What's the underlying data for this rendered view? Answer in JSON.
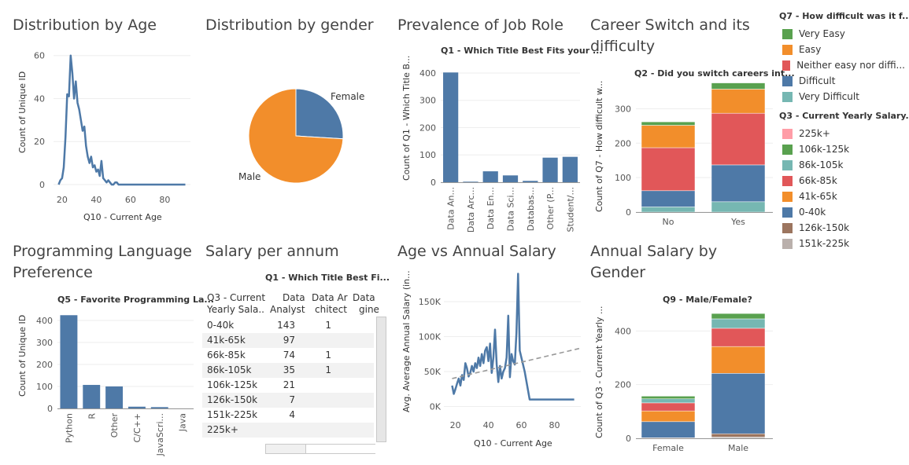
{
  "titles": {
    "age": "Distribution by Age",
    "gender": "Distribution by gender",
    "jobrole": "Prevalence of Job Role",
    "career": "Career Switch and its difficulty",
    "proglang": "Programming Language Preference",
    "salary": "Salary per annum",
    "agesal": "Age vs Annual Salary",
    "salgender": "Annual Salary by Gender"
  },
  "subtitles": {
    "jobrole": "Q1 - Which Title Best Fits your ...",
    "career": "Q2 - Did you switch careers int...",
    "proglang": "Q5 - Favorite Programming La...",
    "salary": "Q1 - Which Title Best Fi...",
    "salgender": "Q9 - Male/Female?"
  },
  "colors": {
    "blue": "#4e79a7",
    "orange": "#f28e2b",
    "red": "#e15759",
    "teal": "#76b7b2",
    "green": "#59a14f",
    "pink": "#ff9da7",
    "lightgreen": "#8cd17d",
    "lightteal": "#86bcb6",
    "brown": "#9c755f",
    "gray": "#bab0ac"
  },
  "legend_q7": {
    "title": "Q7 - How difficult was it f...",
    "items": [
      {
        "label": "Very Easy",
        "color": "#59a14f"
      },
      {
        "label": "Easy",
        "color": "#f28e2b"
      },
      {
        "label": "Neither easy nor diffi...",
        "color": "#e15759"
      },
      {
        "label": "Difficult",
        "color": "#4e79a7"
      },
      {
        "label": "Very Difficult",
        "color": "#76b7b2"
      }
    ]
  },
  "legend_q3": {
    "title": "Q3 - Current Yearly Salary...",
    "items": [
      {
        "label": "225k+",
        "color": "#ff9da7"
      },
      {
        "label": "106k-125k",
        "color": "#59a14f"
      },
      {
        "label": "86k-105k",
        "color": "#76b7b2"
      },
      {
        "label": "66k-85k",
        "color": "#e15759"
      },
      {
        "label": "41k-65k",
        "color": "#f28e2b"
      },
      {
        "label": "0-40k",
        "color": "#4e79a7"
      },
      {
        "label": "126k-150k",
        "color": "#9c755f"
      },
      {
        "label": "151k-225k",
        "color": "#bab0ac"
      }
    ]
  },
  "chart_data": [
    {
      "id": "age_distribution",
      "type": "line",
      "title": "Distribution by Age",
      "xlabel": "Q10 - Current Age",
      "ylabel": "Count of Unique ID",
      "xlim": [
        15,
        95
      ],
      "ylim": [
        0,
        65
      ],
      "xticks": [
        20,
        40,
        60,
        80
      ],
      "yticks": [
        0,
        20,
        40,
        60
      ],
      "x": [
        18,
        19,
        20,
        21,
        22,
        23,
        24,
        25,
        26,
        27,
        28,
        29,
        30,
        31,
        32,
        33,
        34,
        35,
        36,
        37,
        38,
        39,
        40,
        41,
        42,
        43,
        44,
        45,
        46,
        47,
        48,
        49,
        50,
        51,
        52,
        53,
        55,
        57,
        60,
        65,
        70,
        80,
        92
      ],
      "y": [
        0,
        2,
        3,
        8,
        22,
        42,
        41,
        60,
        52,
        40,
        48,
        38,
        35,
        30,
        25,
        27,
        18,
        13,
        10,
        13,
        8,
        9,
        6,
        7,
        4,
        11,
        3,
        2,
        1,
        2,
        1,
        0,
        0,
        1,
        1,
        0,
        0,
        0,
        0,
        0,
        0,
        0,
        0
      ]
    },
    {
      "id": "gender_distribution",
      "type": "pie",
      "title": "Distribution by gender",
      "labels": [
        "Female",
        "Male"
      ],
      "values": [
        26,
        74
      ],
      "colors": [
        "#4e79a7",
        "#f28e2b"
      ]
    },
    {
      "id": "job_role",
      "type": "bar",
      "title": "Prevalence of Job Role",
      "subtitle": "Q1 - Which Title Best Fits your ...",
      "ylabel": "Count of Q1 - Which Title B...",
      "categories": [
        "Data An...",
        "Data Arc...",
        "Data En...",
        "Data Sci...",
        "Databas...",
        "Other (P...",
        "Student/..."
      ],
      "values": [
        402,
        2,
        40,
        25,
        5,
        90,
        93
      ],
      "ylim": [
        0,
        420
      ],
      "yticks": [
        0,
        100,
        200,
        300,
        400
      ]
    },
    {
      "id": "career_switch",
      "type": "bar",
      "title": "Career Switch and its difficulty",
      "subtitle": "Q2 - Did you switch careers int...",
      "ylabel": "Count of Q7 - How difficult w...",
      "categories": [
        "No",
        "Yes"
      ],
      "series": [
        {
          "name": "Very Difficult",
          "values": [
            15,
            30
          ]
        },
        {
          "name": "Difficult",
          "values": [
            47,
            107
          ]
        },
        {
          "name": "Neither easy nor diffi...",
          "values": [
            125,
            150
          ]
        },
        {
          "name": "Easy",
          "values": [
            65,
            70
          ]
        },
        {
          "name": "Very Easy",
          "values": [
            10,
            18
          ]
        }
      ],
      "ylim": [
        0,
        390
      ],
      "yticks": [
        0,
        100,
        200,
        300
      ]
    },
    {
      "id": "prog_language",
      "type": "bar",
      "title": "Programming Language Preference",
      "subtitle": "Q5 - Favorite Programming La...",
      "ylabel": "Count of Unique ID",
      "categories": [
        "Python",
        "R",
        "Other",
        "C/C++",
        "JavaScri...",
        "Java"
      ],
      "values": [
        424,
        107,
        100,
        8,
        6,
        0
      ],
      "ylim": [
        0,
        450
      ],
      "yticks": [
        0,
        100,
        200,
        300,
        400
      ]
    },
    {
      "id": "salary_table",
      "type": "table",
      "title": "Salary per annum",
      "subtitle": "Q1 - Which Title Best Fi...",
      "row_header": [
        "Q3 - Current",
        "Yearly Sala.."
      ],
      "columns": [
        [
          "Data",
          "Analyst"
        ],
        [
          "Data Ar",
          "chitect"
        ],
        [
          "Data",
          "gine"
        ]
      ],
      "rows": [
        {
          "label": "0-40k",
          "cells": [
            "143",
            "1",
            ""
          ]
        },
        {
          "label": "41k-65k",
          "cells": [
            "97",
            "",
            ""
          ]
        },
        {
          "label": "66k-85k",
          "cells": [
            "74",
            "1",
            ""
          ]
        },
        {
          "label": "86k-105k",
          "cells": [
            "35",
            "1",
            ""
          ]
        },
        {
          "label": "106k-125k",
          "cells": [
            "21",
            "",
            ""
          ]
        },
        {
          "label": "126k-150k",
          "cells": [
            "7",
            "",
            ""
          ]
        },
        {
          "label": "151k-225k",
          "cells": [
            "4",
            "",
            ""
          ]
        },
        {
          "label": "225k+",
          "cells": [
            "",
            "",
            ""
          ]
        }
      ]
    },
    {
      "id": "age_vs_salary",
      "type": "line",
      "title": "Age vs Annual Salary",
      "xlabel": "Q10 - Current Age",
      "ylabel": "Avg. Average Annual Salary (in...",
      "xlim": [
        13,
        96
      ],
      "ylim": [
        -5000,
        195000
      ],
      "xticks": [
        20,
        40,
        60,
        80
      ],
      "yticks": [
        0,
        50000,
        100000,
        150000
      ],
      "ytick_labels": [
        "0K",
        "50K",
        "100K",
        "150K"
      ],
      "x": [
        18,
        19,
        20,
        21,
        22,
        23,
        24,
        25,
        26,
        27,
        28,
        29,
        30,
        31,
        32,
        33,
        34,
        35,
        36,
        37,
        38,
        39,
        40,
        41,
        42,
        43,
        44,
        45,
        46,
        47,
        48,
        49,
        50,
        51,
        52,
        53,
        54,
        55,
        56,
        57,
        58,
        59,
        60,
        62,
        65,
        68,
        70,
        80,
        92
      ],
      "y": [
        30000,
        18000,
        25000,
        33000,
        40000,
        30000,
        45000,
        38000,
        62000,
        55000,
        43000,
        48000,
        58000,
        50000,
        62000,
        55000,
        70000,
        58000,
        75000,
        62000,
        80000,
        85000,
        65000,
        90000,
        48000,
        70000,
        110000,
        60000,
        35000,
        58000,
        40000,
        50000,
        55000,
        70000,
        130000,
        42000,
        75000,
        65000,
        60000,
        105000,
        190000,
        80000,
        70000,
        50000,
        10000,
        10000,
        10000,
        10000,
        10000
      ],
      "trendline": {
        "x": [
          18,
          95
        ],
        "y": [
          40000,
          83000
        ]
      }
    },
    {
      "id": "salary_by_gender",
      "type": "bar",
      "title": "Annual Salary by Gender",
      "subtitle": "Q9 - Male/Female?",
      "ylabel": "Count of Q3 - Current Yearly ...",
      "categories": [
        "Female",
        "Male"
      ],
      "series": [
        {
          "name": "151k-225k",
          "values": [
            0,
            5
          ]
        },
        {
          "name": "126k-150k",
          "values": [
            2,
            12
          ]
        },
        {
          "name": "0-40k",
          "values": [
            60,
            225
          ]
        },
        {
          "name": "41k-65k",
          "values": [
            40,
            100
          ]
        },
        {
          "name": "66k-85k",
          "values": [
            30,
            68
          ]
        },
        {
          "name": "86k-105k",
          "values": [
            15,
            35
          ]
        },
        {
          "name": "106k-125k",
          "values": [
            10,
            20
          ]
        },
        {
          "name": "225k+",
          "values": [
            0,
            0
          ]
        }
      ],
      "ylim": [
        0,
        480
      ],
      "yticks": [
        0,
        200,
        400
      ]
    }
  ]
}
